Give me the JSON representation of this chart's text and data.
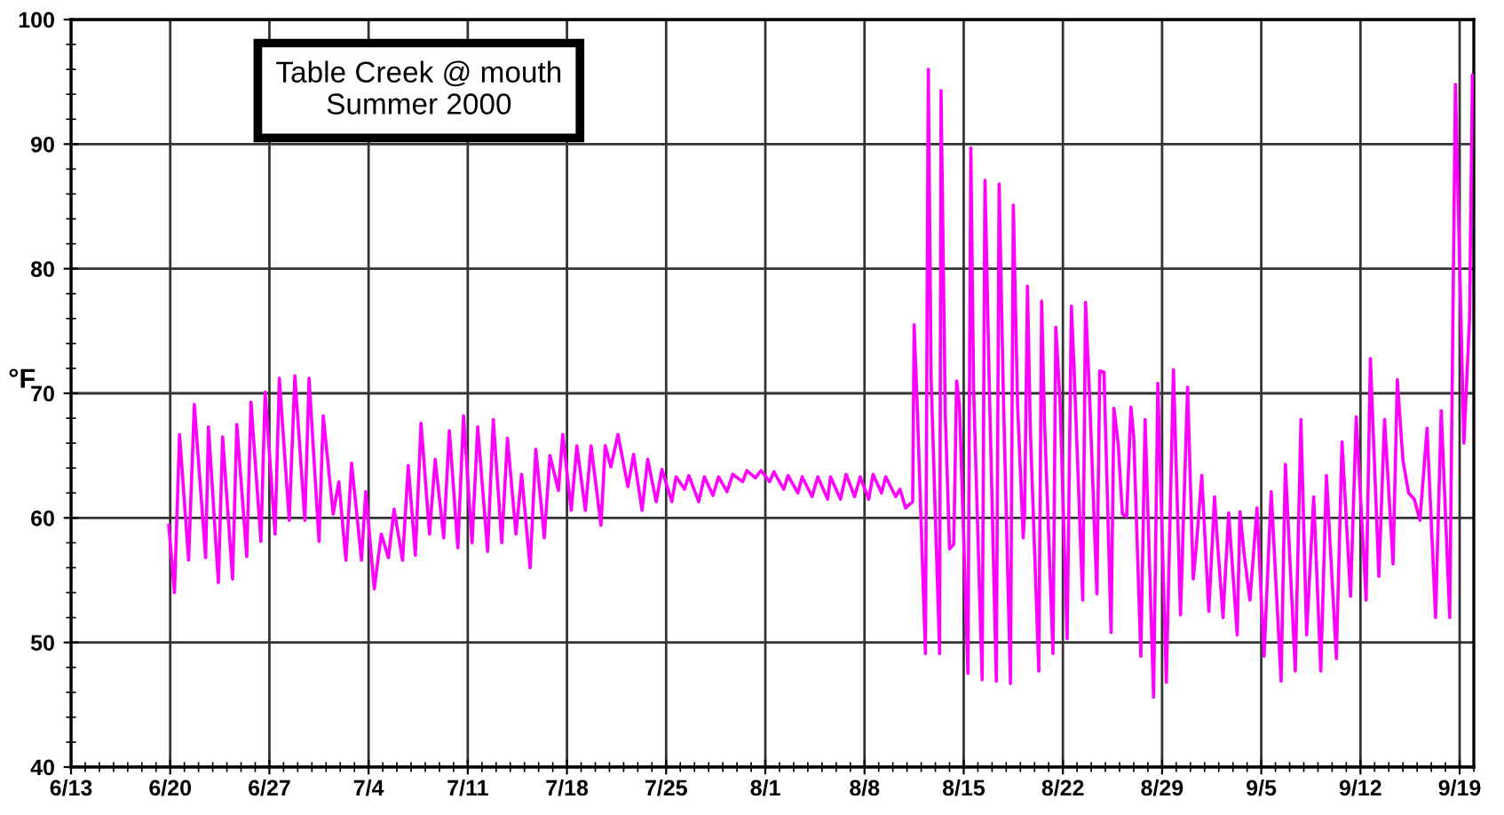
{
  "chart_data": {
    "type": "line",
    "title": "Table Creek @ mouth\nSummer 2000",
    "ylabel": "°F",
    "xlim": [
      "2000-06-13",
      "2000-09-20"
    ],
    "xticks": [
      {
        "value": "2000-06-13",
        "label": "6/13"
      },
      {
        "value": "2000-06-20",
        "label": "6/20"
      },
      {
        "value": "2000-06-27",
        "label": "6/27"
      },
      {
        "value": "2000-07-04",
        "label": "7/4"
      },
      {
        "value": "2000-07-11",
        "label": "7/11"
      },
      {
        "value": "2000-07-18",
        "label": "7/18"
      },
      {
        "value": "2000-07-25",
        "label": "7/25"
      },
      {
        "value": "2000-08-01",
        "label": "8/1"
      },
      {
        "value": "2000-08-08",
        "label": "8/8"
      },
      {
        "value": "2000-08-15",
        "label": "8/15"
      },
      {
        "value": "2000-08-22",
        "label": "8/22"
      },
      {
        "value": "2000-08-29",
        "label": "8/29"
      },
      {
        "value": "2000-09-05",
        "label": "9/5"
      },
      {
        "value": "2000-09-12",
        "label": "9/12"
      },
      {
        "value": "2000-09-19",
        "label": "9/19"
      }
    ],
    "ylim": [
      40,
      100
    ],
    "yticks": [
      40,
      50,
      60,
      70,
      80,
      90,
      100
    ],
    "grid": true,
    "series": [
      {
        "color": "#ff00ff",
        "x": [
          "2000-06-19T21:36",
          "2000-06-20T07:12",
          "2000-06-20T15:50",
          "2000-06-21T07:12",
          "2000-06-21T16:48",
          "2000-06-22T12:00",
          "2000-06-22T16:48",
          "2000-06-23T09:36",
          "2000-06-23T16:48",
          "2000-06-24T09:36",
          "2000-06-24T16:48",
          "2000-06-25T09:36",
          "2000-06-25T16:48",
          "2000-06-26T09:36",
          "2000-06-26T16:48",
          "2000-06-27T09:36",
          "2000-06-27T16:48",
          "2000-06-28T09:36",
          "2000-06-28T19:12",
          "2000-06-29T12:00",
          "2000-06-29T19:12",
          "2000-06-30T12:00",
          "2000-06-30T19:12",
          "2000-07-01T12:00",
          "2000-07-01T21:36",
          "2000-07-02T09:36",
          "2000-07-02T19:12",
          "2000-07-03T12:00",
          "2000-07-03T19:12",
          "2000-07-04T09:36",
          "2000-07-04T21:36",
          "2000-07-05T09:36",
          "2000-07-05T19:12",
          "2000-07-06T09:36",
          "2000-07-06T19:12",
          "2000-07-07T07:12",
          "2000-07-07T16:48",
          "2000-07-08T07:12",
          "2000-07-08T16:48",
          "2000-07-09T07:12",
          "2000-07-09T16:48",
          "2000-07-10T07:12",
          "2000-07-10T16:48",
          "2000-07-11T07:12",
          "2000-07-11T16:48",
          "2000-07-12T09:36",
          "2000-07-12T19:12",
          "2000-07-13T09:36",
          "2000-07-13T19:12",
          "2000-07-14T09:36",
          "2000-07-14T19:12",
          "2000-07-15T09:36",
          "2000-07-15T19:12",
          "2000-07-16T09:36",
          "2000-07-16T19:12",
          "2000-07-17T09:36",
          "2000-07-17T16:48",
          "2000-07-18T07:12",
          "2000-07-18T16:48",
          "2000-07-19T07:12",
          "2000-07-19T16:48",
          "2000-07-20T09:36",
          "2000-07-20T16:48",
          "2000-07-21T02:24",
          "2000-07-21T14:24",
          "2000-07-22T07:12",
          "2000-07-22T16:48",
          "2000-07-23T07:12",
          "2000-07-23T16:48",
          "2000-07-24T07:12",
          "2000-07-24T16:48",
          "2000-07-25T09:36",
          "2000-07-25T16:48",
          "2000-07-26T07:12",
          "2000-07-26T14:24",
          "2000-07-27T07:12",
          "2000-07-27T16:48",
          "2000-07-28T07:12",
          "2000-07-28T16:48",
          "2000-07-29T07:12",
          "2000-07-29T16:48",
          "2000-07-30T09:36",
          "2000-07-30T16:48",
          "2000-07-31T07:12",
          "2000-07-31T16:48",
          "2000-08-01T07:12",
          "2000-08-01T14:24",
          "2000-08-02T07:12",
          "2000-08-02T14:24",
          "2000-08-03T07:12",
          "2000-08-03T14:24",
          "2000-08-04T07:12",
          "2000-08-04T16:48",
          "2000-08-05T09:36",
          "2000-08-05T14:24",
          "2000-08-06T07:12",
          "2000-08-06T16:48",
          "2000-08-07T07:12",
          "2000-08-07T16:48",
          "2000-08-08T07:12",
          "2000-08-08T14:24",
          "2000-08-09T04:48",
          "2000-08-09T12:00",
          "2000-08-10T04:48",
          "2000-08-10T12:00",
          "2000-08-10T21:36",
          "2000-08-11T09:36",
          "2000-08-11T12:00",
          "2000-08-11T16:48",
          "2000-08-12T07:12",
          "2000-08-12T12:00",
          "2000-08-12T16:48",
          "2000-08-13T07:12",
          "2000-08-13T09:36",
          "2000-08-13T16:48",
          "2000-08-14T00:00",
          "2000-08-14T07:12",
          "2000-08-14T12:00",
          "2000-08-14T16:48",
          "2000-08-15T07:12",
          "2000-08-15T12:00",
          "2000-08-15T16:48",
          "2000-08-16T07:12",
          "2000-08-16T12:00",
          "2000-08-16T19:12",
          "2000-08-17T07:12",
          "2000-08-17T12:00",
          "2000-08-17T19:12",
          "2000-08-18T07:12",
          "2000-08-18T12:00",
          "2000-08-18T19:12",
          "2000-08-19T04:48",
          "2000-08-19T07:12",
          "2000-08-19T12:00",
          "2000-08-19T16:48",
          "2000-08-20T07:12",
          "2000-08-20T12:00",
          "2000-08-20T16:48",
          "2000-08-21T07:12",
          "2000-08-21T12:00",
          "2000-08-21T19:12",
          "2000-08-22T07:12",
          "2000-08-22T14:24",
          "2000-08-22T19:12",
          "2000-08-23T09:36",
          "2000-08-23T14:24",
          "2000-08-23T21:36",
          "2000-08-24T09:36",
          "2000-08-24T14:24",
          "2000-08-24T21:36",
          "2000-08-25T09:36",
          "2000-08-25T14:24",
          "2000-08-25T21:36",
          "2000-08-26T04:48",
          "2000-08-26T12:00",
          "2000-08-26T19:12",
          "2000-08-27T00:00",
          "2000-08-27T12:00",
          "2000-08-27T19:12",
          "2000-08-28T09:36",
          "2000-08-28T16:48",
          "2000-08-29T07:12",
          "2000-08-29T19:12",
          "2000-08-30T07:12",
          "2000-08-30T19:12",
          "2000-08-31T04:48",
          "2000-08-31T09:36",
          "2000-08-31T19:12",
          "2000-09-01T07:12",
          "2000-09-01T16:48",
          "2000-09-01T21:36",
          "2000-09-02T07:12",
          "2000-09-02T16:48",
          "2000-09-03T07:12",
          "2000-09-03T12:00",
          "2000-09-03T19:12",
          "2000-09-04T04:48",
          "2000-09-04T16:48",
          "2000-09-05T04:48",
          "2000-09-05T16:48",
          "2000-09-06T09:36",
          "2000-09-06T16:48",
          "2000-09-07T09:36",
          "2000-09-07T19:12",
          "2000-09-08T04:48",
          "2000-09-08T16:48",
          "2000-09-09T04:48",
          "2000-09-09T14:24",
          "2000-09-10T07:12",
          "2000-09-10T16:48",
          "2000-09-11T07:12",
          "2000-09-11T16:48",
          "2000-09-12T09:36",
          "2000-09-12T16:48",
          "2000-09-13T07:12",
          "2000-09-13T16:48",
          "2000-09-14T07:12",
          "2000-09-14T14:24",
          "2000-09-15T00:00",
          "2000-09-15T09:36",
          "2000-09-15T19:12",
          "2000-09-16T04:48",
          "2000-09-16T16:48",
          "2000-09-17T07:12",
          "2000-09-17T16:48",
          "2000-09-18T07:12",
          "2000-09-18T16:48",
          "2000-09-19T07:12",
          "2000-09-19T16:48",
          "2000-09-19T21:36"
        ],
        "values": [
          59.4,
          54.0,
          66.7,
          56.6,
          69.1,
          56.8,
          67.3,
          54.8,
          66.5,
          55.1,
          67.5,
          56.9,
          69.3,
          58.1,
          70.1,
          58.7,
          71.2,
          59.8,
          71.4,
          59.8,
          71.2,
          58.1,
          68.2,
          60.3,
          62.9,
          56.6,
          64.4,
          56.6,
          62.1,
          54.3,
          58.7,
          56.8,
          60.7,
          56.6,
          64.2,
          57.0,
          67.6,
          58.7,
          64.7,
          58.4,
          67.0,
          57.6,
          68.2,
          58.0,
          67.3,
          57.3,
          67.9,
          58.0,
          66.4,
          58.7,
          63.5,
          56.0,
          65.5,
          58.4,
          65.0,
          62.2,
          66.7,
          60.6,
          65.8,
          60.6,
          65.8,
          59.4,
          65.8,
          64.1,
          66.7,
          62.5,
          65.1,
          60.6,
          64.7,
          61.3,
          63.9,
          61.3,
          63.3,
          62.3,
          63.4,
          61.3,
          63.3,
          61.8,
          63.3,
          62.1,
          63.5,
          62.9,
          63.8,
          63.2,
          63.8,
          62.9,
          63.7,
          62.3,
          63.4,
          62.0,
          63.3,
          61.7,
          63.3,
          61.5,
          63.3,
          61.5,
          63.5,
          61.7,
          63.3,
          61.5,
          63.5,
          62.0,
          63.3,
          61.7,
          62.3,
          60.8,
          61.3,
          75.5,
          69.7,
          49.1,
          96.0,
          71.2,
          49.1,
          94.3,
          68.4,
          57.5,
          57.9,
          71.0,
          69.1,
          47.5,
          89.7,
          70.3,
          47.0,
          87.1,
          71.0,
          46.9,
          86.8,
          69.8,
          46.7,
          85.1,
          69.1,
          58.4,
          60.5,
          78.6,
          67.2,
          47.7,
          77.4,
          67.9,
          49.1,
          75.3,
          69.3,
          50.3,
          77.0,
          71.7,
          53.4,
          77.3,
          69.3,
          53.9,
          71.8,
          71.7,
          50.8,
          68.8,
          66.0,
          60.3,
          60.1,
          68.9,
          66.5,
          48.9,
          67.9,
          45.6,
          70.8,
          46.8,
          71.9,
          52.2,
          70.5,
          55.1,
          57.5,
          63.4,
          52.5,
          61.7,
          58.2,
          52.0,
          60.4,
          50.6,
          60.5,
          57.0,
          53.4,
          60.8,
          48.9,
          62.1,
          46.9,
          64.3,
          47.7,
          67.9,
          50.6,
          61.7,
          47.7,
          63.4,
          48.7,
          66.1,
          53.7,
          68.1,
          53.4,
          72.8,
          55.3,
          67.9,
          56.3,
          71.1,
          64.6,
          62.0,
          61.5,
          59.8,
          67.2,
          52.0,
          68.6,
          52.0,
          94.8,
          66.0,
          76.0,
          95.5
        ]
      }
    ]
  }
}
